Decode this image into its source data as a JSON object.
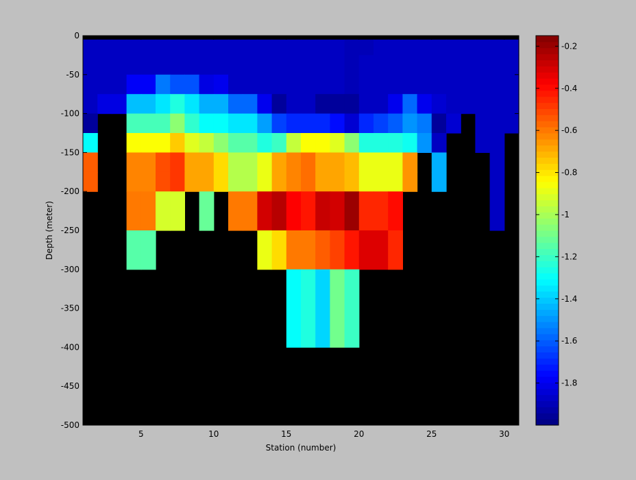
{
  "chart_data": {
    "type": "heatmap",
    "xlabel": "Station (number)",
    "ylabel": "Depth (meter)",
    "xlim": [
      1,
      31
    ],
    "ylim": [
      -500,
      0
    ],
    "xticks": [
      5,
      10,
      15,
      20,
      25,
      30
    ],
    "yticks": [
      0,
      -50,
      -100,
      -150,
      -200,
      -250,
      -300,
      -350,
      -400,
      -450,
      -500
    ],
    "colorbar": {
      "range": [
        -2.0,
        -0.15
      ],
      "ticks": [
        -0.2,
        -0.4,
        -0.6,
        -0.8,
        -1,
        -1.2,
        -1.4,
        -1.6,
        -1.8
      ],
      "colormap": "jet"
    },
    "missing_color": "#000000",
    "top_band_depth": -5,
    "depth_bins": [
      {
        "top": 0,
        "bottom": -25
      },
      {
        "top": -25,
        "bottom": -50
      },
      {
        "top": -50,
        "bottom": -75
      },
      {
        "top": -75,
        "bottom": -100
      },
      {
        "top": -100,
        "bottom": -125
      },
      {
        "top": -125,
        "bottom": -150
      },
      {
        "top": -150,
        "bottom": -175
      },
      {
        "top": -175,
        "bottom": -200
      },
      {
        "top": -200,
        "bottom": -250
      },
      {
        "top": -250,
        "bottom": -300
      },
      {
        "top": -300,
        "bottom": -400
      },
      {
        "top": -400,
        "bottom": -500
      }
    ],
    "values": [
      [
        -1.88,
        -1.88,
        -1.88,
        -1.88,
        -1.88,
        -1.88,
        -1.88,
        -1.88,
        -1.88,
        -1.88,
        -1.88,
        -1.88,
        -1.88,
        -1.88,
        -1.88,
        -1.88,
        -1.88,
        -1.88,
        -1.9,
        -1.9,
        -1.88,
        -1.88,
        -1.88,
        -1.88,
        -1.88,
        -1.88,
        -1.88,
        -1.88,
        -1.88,
        -1.88
      ],
      [
        -1.88,
        -1.88,
        -1.88,
        -1.88,
        -1.88,
        -1.88,
        -1.88,
        -1.88,
        -1.88,
        -1.88,
        -1.88,
        -1.88,
        -1.88,
        -1.88,
        -1.88,
        -1.88,
        -1.88,
        -1.88,
        -1.9,
        -1.88,
        -1.88,
        -1.88,
        -1.88,
        -1.88,
        -1.88,
        -1.88,
        -1.88,
        -1.88,
        -1.88,
        -1.88
      ],
      [
        -1.88,
        -1.88,
        -1.88,
        -1.78,
        -1.78,
        -1.55,
        -1.62,
        -1.62,
        -1.82,
        -1.8,
        -1.88,
        -1.88,
        -1.88,
        -1.88,
        -1.88,
        -1.88,
        -1.88,
        -1.88,
        -1.9,
        -1.88,
        -1.88,
        -1.88,
        -1.88,
        -1.88,
        -1.88,
        -1.88,
        -1.88,
        -1.88,
        -1.88,
        -1.88
      ],
      [
        -1.88,
        -1.82,
        -1.82,
        -1.42,
        -1.42,
        -1.35,
        -1.25,
        -1.35,
        -1.45,
        -1.45,
        -1.58,
        -1.58,
        -1.8,
        -1.95,
        -1.88,
        -1.88,
        -1.95,
        -1.95,
        -1.95,
        -1.88,
        -1.88,
        -1.8,
        -1.58,
        -1.8,
        -1.85,
        -1.88,
        -1.88,
        -1.88,
        -1.88,
        -1.88
      ],
      [
        -1.95,
        null,
        null,
        -1.18,
        -1.18,
        -1.18,
        -1.05,
        -1.22,
        -1.3,
        -1.3,
        -1.35,
        -1.35,
        -1.48,
        -1.65,
        -1.7,
        -1.7,
        -1.7,
        -1.75,
        -1.85,
        -1.7,
        -1.65,
        -1.6,
        -1.5,
        -1.55,
        -1.95,
        -1.85,
        null,
        -1.88,
        -1.88,
        -1.88
      ],
      [
        -1.3,
        null,
        null,
        -0.85,
        -0.85,
        -0.85,
        -0.75,
        -0.9,
        -0.95,
        -1.05,
        -1.15,
        -1.15,
        -1.25,
        -1.2,
        -0.95,
        -0.85,
        -0.85,
        -0.9,
        -1.05,
        -1.25,
        -1.25,
        -1.25,
        -1.28,
        -1.5,
        -1.88,
        null,
        null,
        -1.88,
        -1.88,
        null
      ],
      [
        -0.55,
        null,
        null,
        -0.62,
        -0.62,
        -0.52,
        -0.48,
        -0.68,
        -0.68,
        -0.78,
        -0.98,
        -0.98,
        -0.88,
        -0.68,
        -0.62,
        -0.58,
        -0.68,
        -0.68,
        -0.72,
        -0.88,
        -0.88,
        -0.88,
        -0.65,
        null,
        -1.45,
        null,
        null,
        null,
        -1.88,
        null
      ],
      [
        -0.55,
        null,
        null,
        -0.62,
        -0.62,
        -0.52,
        -0.48,
        -0.68,
        -0.68,
        -0.78,
        -0.98,
        -0.98,
        -0.88,
        -0.68,
        -0.62,
        -0.58,
        -0.68,
        -0.68,
        -0.72,
        -0.88,
        -0.88,
        -0.88,
        -0.65,
        null,
        -1.45,
        null,
        null,
        null,
        -1.88,
        null
      ],
      [
        null,
        null,
        null,
        -0.6,
        -0.6,
        -0.92,
        -0.92,
        null,
        -1.12,
        null,
        -0.6,
        -0.6,
        -0.3,
        -0.25,
        -0.38,
        -0.42,
        -0.28,
        -0.3,
        -0.2,
        -0.45,
        -0.45,
        -0.4,
        null,
        null,
        null,
        null,
        null,
        null,
        -1.88,
        null
      ],
      [
        null,
        null,
        null,
        -1.15,
        -1.15,
        null,
        null,
        null,
        null,
        null,
        null,
        null,
        -0.88,
        -0.78,
        -0.6,
        -0.6,
        -0.55,
        -0.5,
        -0.42,
        -0.32,
        -0.32,
        -0.45,
        null,
        null,
        null,
        null,
        null,
        null,
        null,
        null
      ],
      [
        null,
        null,
        null,
        null,
        null,
        null,
        null,
        null,
        null,
        null,
        null,
        null,
        null,
        null,
        -1.3,
        -1.25,
        -1.38,
        -1.1,
        -1.2,
        null,
        null,
        null,
        null,
        null,
        null,
        null,
        null,
        null,
        null,
        null
      ],
      [
        null,
        null,
        null,
        null,
        null,
        null,
        null,
        null,
        null,
        null,
        null,
        null,
        null,
        null,
        null,
        null,
        null,
        null,
        null,
        null,
        null,
        null,
        null,
        null,
        null,
        null,
        null,
        null,
        null,
        null
      ]
    ]
  }
}
